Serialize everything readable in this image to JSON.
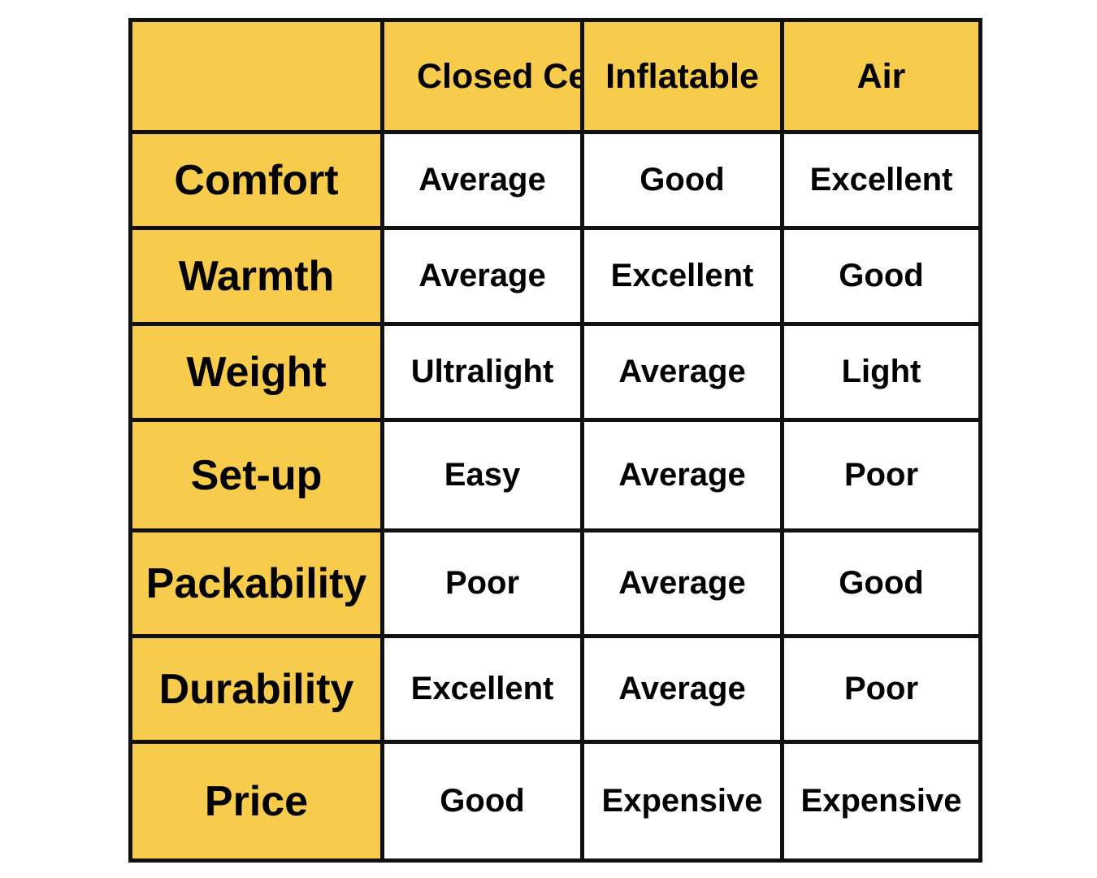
{
  "table": {
    "corner": "",
    "columns": [
      "Closed Cell",
      "Inflatable",
      "Air"
    ],
    "rows": [
      {
        "label": "Comfort",
        "values": [
          "Average",
          "Good",
          "Excellent"
        ]
      },
      {
        "label": "Warmth",
        "values": [
          "Average",
          "Excellent",
          "Good"
        ]
      },
      {
        "label": "Weight",
        "values": [
          "Ultralight",
          "Average",
          "Light"
        ]
      },
      {
        "label": "Set-up",
        "values": [
          "Easy",
          "Average",
          "Poor"
        ]
      },
      {
        "label": "Packability",
        "values": [
          "Poor",
          "Average",
          "Good"
        ]
      },
      {
        "label": "Durability",
        "values": [
          "Excellent",
          "Average",
          "Poor"
        ]
      },
      {
        "label": "Price",
        "values": [
          "Good",
          "Expensive",
          "Expensive"
        ]
      }
    ]
  },
  "colors": {
    "header_fill": "#f7cc4d",
    "cell_fill": "#ffffff",
    "border": "#111111"
  }
}
